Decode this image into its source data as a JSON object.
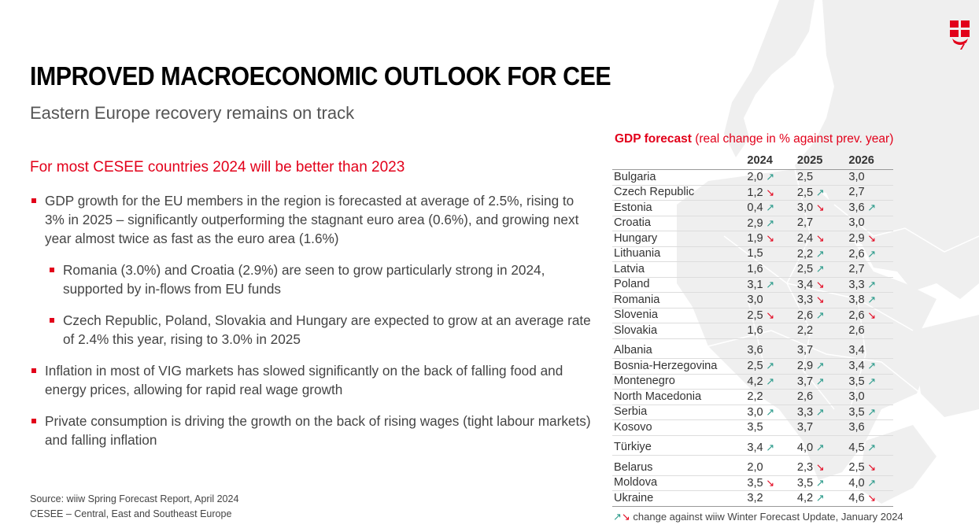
{
  "title": "IMPROVED MACROECONOMIC OUTLOOK FOR CEE",
  "subtitle": "Eastern Europe recovery remains on track",
  "lead": "For most CESEE countries 2024 will be better than 2023",
  "bullets": [
    "GDP growth for the EU members in the region is forecasted at average of 2.5%, rising to 3% in 2025 – significantly outperforming the stagnant euro area (0.6%), and growing next year almost twice as fast as the euro area (1.6%)",
    "Romania (3.0%) and Croatia (2.9%) are seen to grow particularly strong in 2024, supported by in-flows from EU funds",
    "Czech Republic, Poland, Slovakia and Hungary are expected to grow at an average rate of 2.4% this year, rising to 3.0% in 2025",
    "Inflation in most of VIG markets has slowed significantly on the back of falling food and energy prices, allowing for rapid real wage growth",
    "Private consumption is driving the growth on the back of rising wages (tight labour markets) and falling inflation"
  ],
  "source": [
    "Source: wiiw Spring Forecast Report, April 2024",
    "CESEE – Central, East and Southeast Europe"
  ],
  "gdp": {
    "title_bold": "GDP forecast",
    "title_rest": " (real change in % against prev. year)",
    "years": [
      "2024",
      "2025",
      "2026"
    ],
    "rows": [
      {
        "country": "Bulgaria",
        "v": [
          "2,0",
          "2,5",
          "3,0"
        ],
        "t": [
          "up",
          "",
          ""
        ]
      },
      {
        "country": "Czech Republic",
        "v": [
          "1,2",
          "2,5",
          "2,7"
        ],
        "t": [
          "dn",
          "up",
          ""
        ]
      },
      {
        "country": "Estonia",
        "v": [
          "0,4",
          "3,0",
          "3,6"
        ],
        "t": [
          "up",
          "dn",
          "up"
        ]
      },
      {
        "country": "Croatia",
        "v": [
          "2,9",
          "2,7",
          "3,0"
        ],
        "t": [
          "up",
          "",
          ""
        ]
      },
      {
        "country": "Hungary",
        "v": [
          "1,9",
          "2,4",
          "2,9"
        ],
        "t": [
          "dn",
          "dn",
          "dn"
        ]
      },
      {
        "country": "Lithuania",
        "v": [
          "1,5",
          "2,2",
          "2,6"
        ],
        "t": [
          "",
          "up",
          "up"
        ]
      },
      {
        "country": "Latvia",
        "v": [
          "1,6",
          "2,5",
          "2,7"
        ],
        "t": [
          "",
          "up",
          ""
        ]
      },
      {
        "country": "Poland",
        "v": [
          "3,1",
          "3,4",
          "3,3"
        ],
        "t": [
          "up",
          "dn",
          "up"
        ]
      },
      {
        "country": "Romania",
        "v": [
          "3,0",
          "3,3",
          "3,8"
        ],
        "t": [
          "",
          "dn",
          "up"
        ]
      },
      {
        "country": "Slovenia",
        "v": [
          "2,5",
          "2,6",
          "2,6"
        ],
        "t": [
          "dn",
          "up",
          "dn"
        ]
      },
      {
        "country": "Slovakia",
        "v": [
          "1,6",
          "2,2",
          "2,6"
        ],
        "t": [
          "",
          "",
          ""
        ]
      },
      {
        "country": "Albania",
        "v": [
          "3,6",
          "3,7",
          "3,4"
        ],
        "t": [
          "",
          "",
          ""
        ],
        "gap": true
      },
      {
        "country": "Bosnia-Herzegovina",
        "v": [
          "2,5",
          "2,9",
          "3,4"
        ],
        "t": [
          "up",
          "up",
          "up"
        ]
      },
      {
        "country": "Montenegro",
        "v": [
          "4,2",
          "3,7",
          "3,5"
        ],
        "t": [
          "up",
          "up",
          "up"
        ]
      },
      {
        "country": "North Macedonia",
        "v": [
          "2,2",
          "2,6",
          "3,0"
        ],
        "t": [
          "",
          "",
          ""
        ]
      },
      {
        "country": "Serbia",
        "v": [
          "3,0",
          "3,3",
          "3,5"
        ],
        "t": [
          "up",
          "up",
          "up"
        ]
      },
      {
        "country": "Kosovo",
        "v": [
          "3,5",
          "3,7",
          "3,6"
        ],
        "t": [
          "",
          "",
          ""
        ]
      },
      {
        "country": "Türkiye",
        "v": [
          "3,4",
          "4,0",
          "4,5"
        ],
        "t": [
          "up",
          "up",
          "up"
        ],
        "gap": true
      },
      {
        "country": "Belarus",
        "v": [
          "2,0",
          "2,3",
          "2,5"
        ],
        "t": [
          "",
          "dn",
          "dn"
        ],
        "gap": true
      },
      {
        "country": "Moldova",
        "v": [
          "3,5",
          "3,5",
          "4,0"
        ],
        "t": [
          "dn",
          "up",
          "up"
        ]
      },
      {
        "country": "Ukraine",
        "v": [
          "3,2",
          "4,2",
          "4,6"
        ],
        "t": [
          "",
          "up",
          "dn"
        ]
      }
    ],
    "note": " change against wiiw Winter Forecast Update, January 2024"
  }
}
